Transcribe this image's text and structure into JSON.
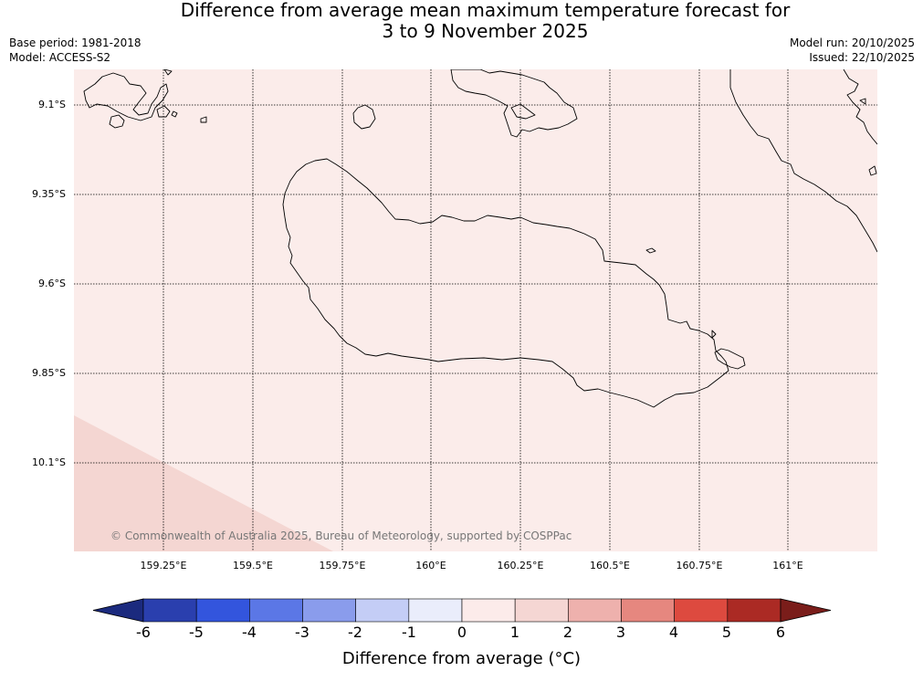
{
  "title": {
    "line1": "Difference from average mean maximum temperature forecast for",
    "line2": "3 to 9 November 2025"
  },
  "meta_left": {
    "base_period": "Base period: 1981-2018",
    "model": "Model: ACCESS-S2"
  },
  "meta_right": {
    "model_run": "Model run: 20/10/2025",
    "issued": "Issued: 22/10/2025"
  },
  "map": {
    "latitude_labels": [
      "9.1°S",
      "9.35°S",
      "9.6°S",
      "9.85°S",
      "10.1°S"
    ],
    "longitude_labels": [
      "159.25°E",
      "159.5°E",
      "159.75°E",
      "160°E",
      "160.25°E",
      "160.5°E",
      "160.75°E",
      "161°E"
    ],
    "copyright": "© Commonwealth of Australia 2025, Bureau of Meteorology, supported by COSPPac",
    "fill_colors": {
      "background_class": "#fbecea",
      "lower_left_class": "#f4d6d2",
      "coastline": "#000000",
      "gridline": "#000000"
    }
  },
  "colorbar": {
    "tick_labels": [
      "-6",
      "-5",
      "-4",
      "-3",
      "-2",
      "-1",
      "0",
      "1",
      "2",
      "3",
      "4",
      "5",
      "6"
    ],
    "colors": [
      "#1b2a7e",
      "#2a3fae",
      "#3355dd",
      "#5b77e6",
      "#8a9cec",
      "#c4cdf6",
      "#eaedfb",
      "#fcebea",
      "#f5d6d3",
      "#eeb1ad",
      "#e6877f",
      "#dd4a3f",
      "#ab2a24",
      "#7a1d1a"
    ],
    "label": "Difference from average (°C)"
  }
}
